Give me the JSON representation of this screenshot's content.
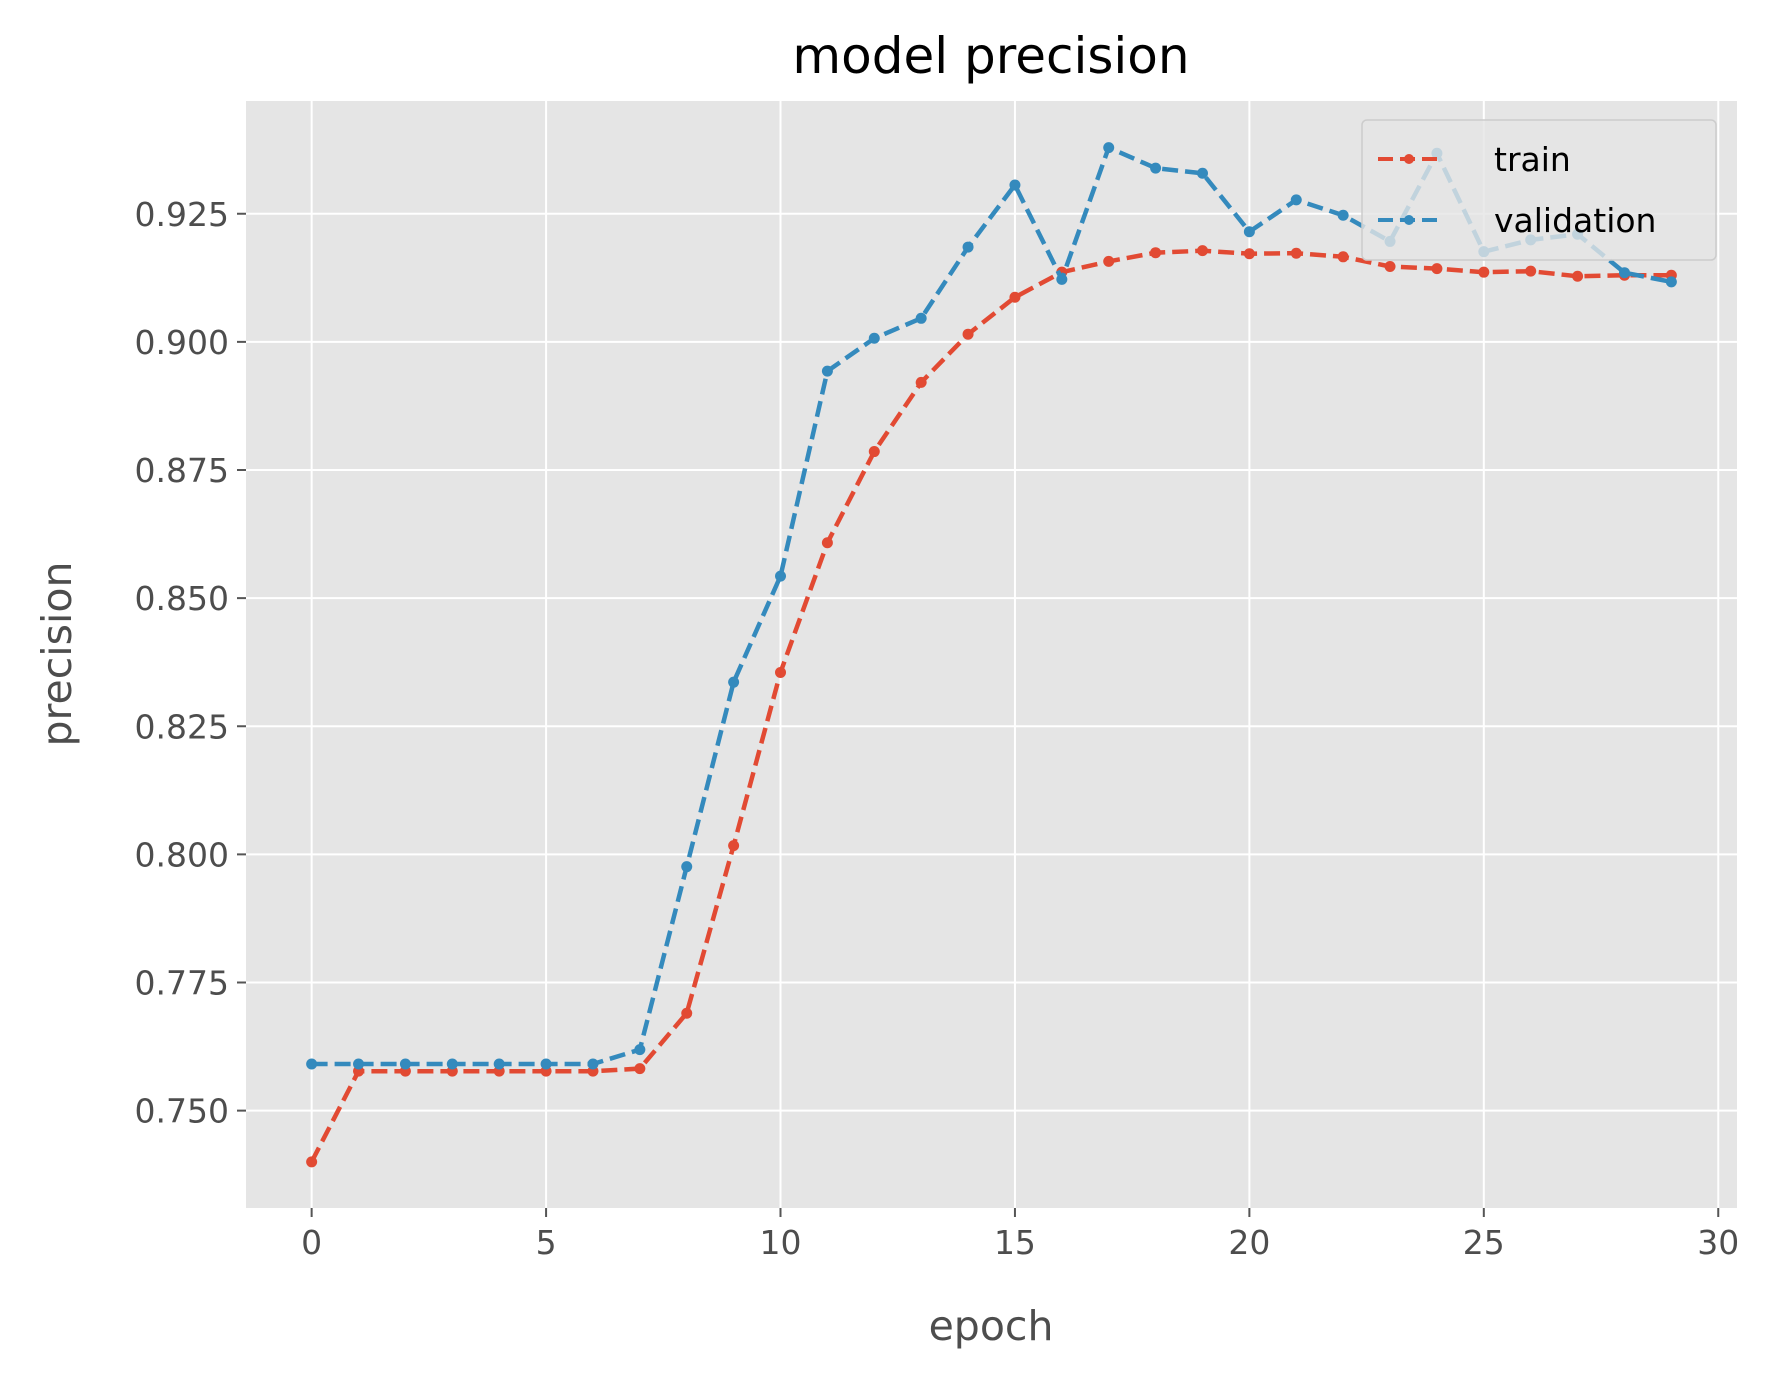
{
  "chart_data": {
    "type": "line",
    "title": "model precision",
    "xlabel": "epoch",
    "ylabel": "precision",
    "xlim": [
      -1.4,
      30.4
    ],
    "ylim": [
      0.731,
      0.947
    ],
    "xticks": [
      0,
      5,
      10,
      15,
      20,
      25,
      30
    ],
    "yticks": [
      0.75,
      0.775,
      0.8,
      0.825,
      0.85,
      0.875,
      0.9,
      0.925
    ],
    "ytick_labels": [
      "0.750",
      "0.775",
      "0.800",
      "0.825",
      "0.850",
      "0.875",
      "0.900",
      "0.925"
    ],
    "grid": true,
    "legend_position": "top-right",
    "x": [
      0,
      1,
      2,
      3,
      4,
      5,
      6,
      7,
      8,
      9,
      10,
      11,
      12,
      13,
      14,
      15,
      16,
      17,
      18,
      19,
      20,
      21,
      22,
      23,
      24,
      25,
      26,
      27,
      28,
      29
    ],
    "series": [
      {
        "name": "train",
        "color": "#e24a33",
        "values": [
          0.74,
          0.7577,
          0.7577,
          0.7577,
          0.7577,
          0.7577,
          0.7577,
          0.7582,
          0.769,
          0.8017,
          0.8355,
          0.8608,
          0.8786,
          0.8921,
          0.9015,
          0.9087,
          0.9136,
          0.9157,
          0.9174,
          0.9178,
          0.9172,
          0.9173,
          0.9166,
          0.9147,
          0.9143,
          0.9136,
          0.9138,
          0.9128,
          0.913,
          0.913
        ]
      },
      {
        "name": "validation",
        "color": "#348abd",
        "values": [
          0.7591,
          0.7591,
          0.7591,
          0.7591,
          0.7591,
          0.7591,
          0.7591,
          0.7619,
          0.7976,
          0.8336,
          0.8543,
          0.8943,
          0.9007,
          0.9046,
          0.9185,
          0.9306,
          0.9122,
          0.9379,
          0.9339,
          0.9329,
          0.9215,
          0.9277,
          0.9247,
          0.9196,
          0.9368,
          0.9176,
          0.9199,
          0.921,
          0.9135,
          0.9117
        ]
      }
    ]
  }
}
